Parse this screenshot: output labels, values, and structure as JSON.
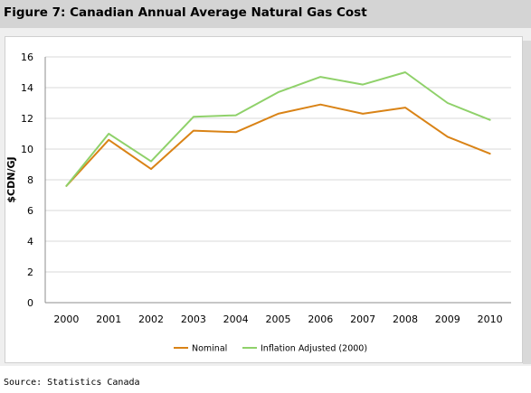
{
  "figure": {
    "title": "Figure 7: Canadian Annual Average Natural Gas Cost",
    "source": "Source: Statistics Canada"
  },
  "chart_data": {
    "type": "line",
    "title": "Figure 7: Canadian Annual Average Natural Gas Cost",
    "xlabel": "",
    "ylabel": "$CDN/GJ",
    "categories": [
      "2000",
      "2001",
      "2002",
      "2003",
      "2004",
      "2005",
      "2006",
      "2007",
      "2008",
      "2009",
      "2010"
    ],
    "ylim": [
      0,
      16
    ],
    "yticks": [
      0,
      2,
      4,
      6,
      8,
      10,
      12,
      14,
      16
    ],
    "grid": "horizontal",
    "legend_position": "bottom",
    "series": [
      {
        "name": "Nominal",
        "color": "#d98316",
        "values": [
          7.6,
          10.6,
          8.7,
          11.2,
          11.1,
          12.3,
          12.9,
          12.3,
          12.7,
          10.8,
          9.7
        ]
      },
      {
        "name": "Inflation Adjusted (2000)",
        "color": "#8fd16a",
        "values": [
          7.6,
          11.0,
          9.2,
          12.1,
          12.2,
          13.7,
          14.7,
          14.2,
          15.0,
          13.0,
          11.9
        ]
      }
    ]
  },
  "colors": {
    "title_bar": "#d4d4d4",
    "panel": "#efefef",
    "gridline": "#d9d9d9"
  }
}
